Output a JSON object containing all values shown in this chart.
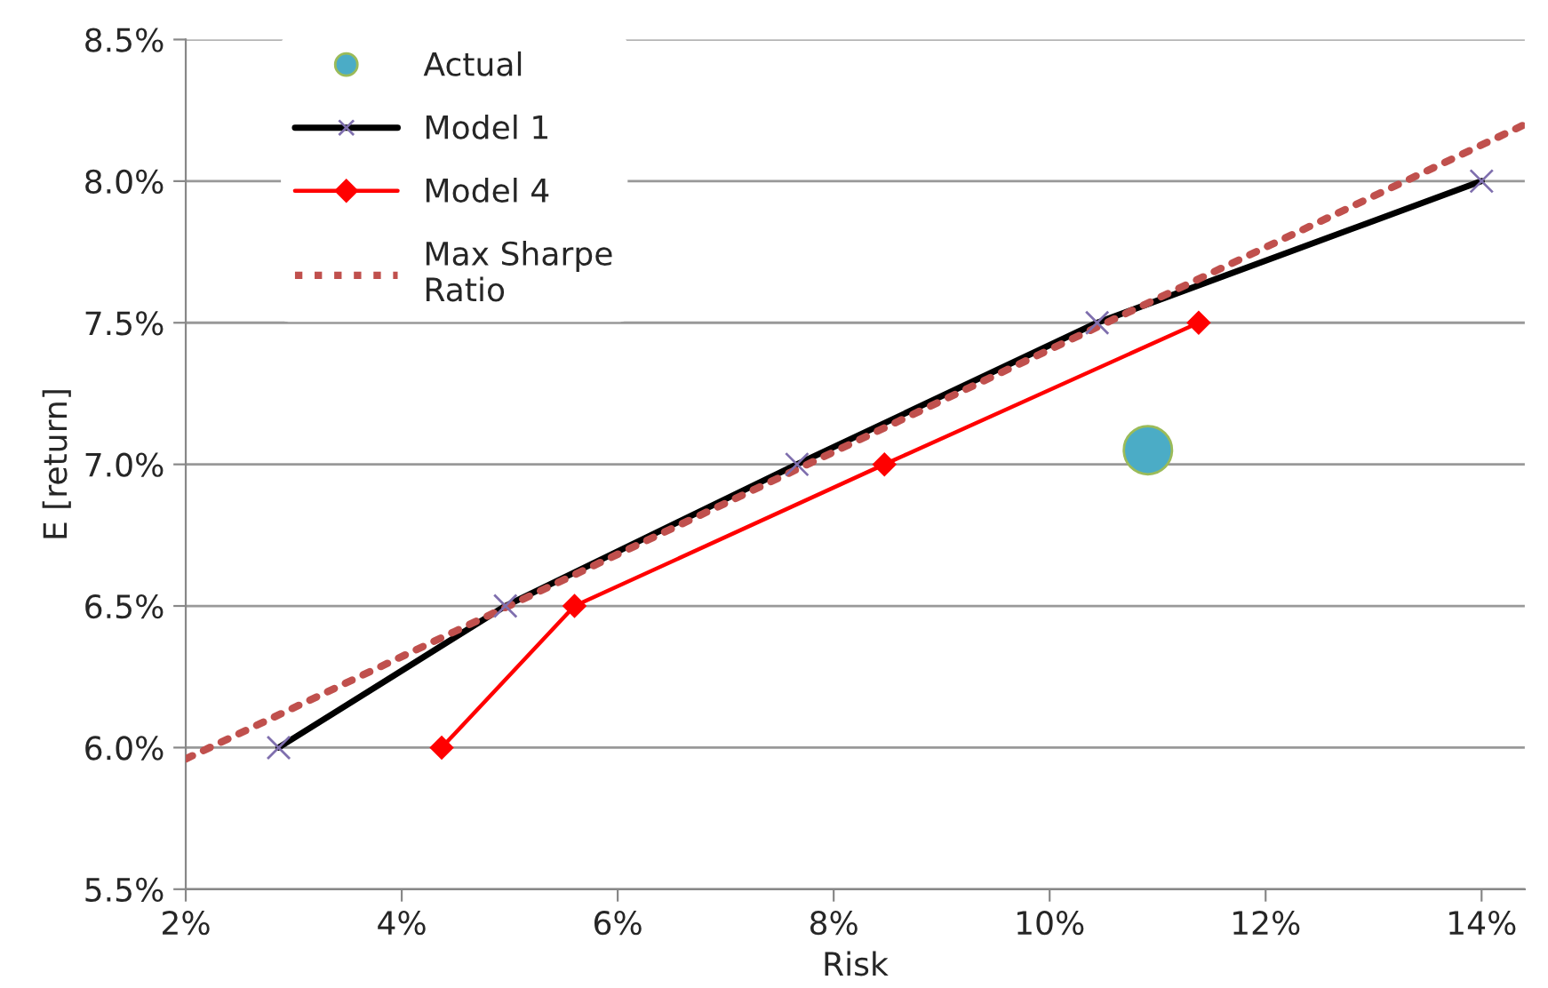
{
  "chart_data": {
    "type": "line",
    "xlabel": "Risk",
    "ylabel": "E [return]",
    "xlim": [
      2,
      14.4
    ],
    "ylim": [
      5.5,
      8.5
    ],
    "xticks": [
      {
        "value": 2,
        "label": "2%"
      },
      {
        "value": 4,
        "label": "4%"
      },
      {
        "value": 6,
        "label": "6%"
      },
      {
        "value": 8,
        "label": "8%"
      },
      {
        "value": 10,
        "label": "10%"
      },
      {
        "value": 12,
        "label": "12%"
      },
      {
        "value": 14,
        "label": "14%"
      }
    ],
    "yticks": [
      {
        "value": 5.5,
        "label": "5.5%"
      },
      {
        "value": 6.0,
        "label": "6.0%"
      },
      {
        "value": 6.5,
        "label": "6.5%"
      },
      {
        "value": 7.0,
        "label": "7.0%"
      },
      {
        "value": 7.5,
        "label": "7.5%"
      },
      {
        "value": 8.0,
        "label": "8.0%"
      },
      {
        "value": 8.5,
        "label": "8.5%"
      }
    ],
    "grid": "y",
    "legend": "top left",
    "series": [
      {
        "name": "Actual",
        "type": "scatter",
        "color": "#4bacc6",
        "marker": "circle",
        "x": [
          10.91
        ],
        "values": [
          7.05
        ]
      },
      {
        "name": "Model 1",
        "color": "#000000",
        "marker": "cross",
        "line_style": "solid",
        "x": [
          2.86,
          4.96,
          7.66,
          10.44,
          14.0
        ],
        "values": [
          6.0,
          6.5,
          7.0,
          7.5,
          8.0
        ]
      },
      {
        "name": "Model 4",
        "color": "#ff0000",
        "marker": "diamond",
        "line_style": "solid",
        "x": [
          4.37,
          5.6,
          8.47,
          11.38
        ],
        "values": [
          6.0,
          6.5,
          7.0,
          7.5
        ]
      },
      {
        "name": "Max Sharpe\nRatio",
        "color": "#c0504d",
        "marker": "none",
        "line_style": "dotted",
        "x": [
          2.0,
          14.4
        ],
        "values": [
          5.96,
          8.2
        ]
      }
    ]
  }
}
